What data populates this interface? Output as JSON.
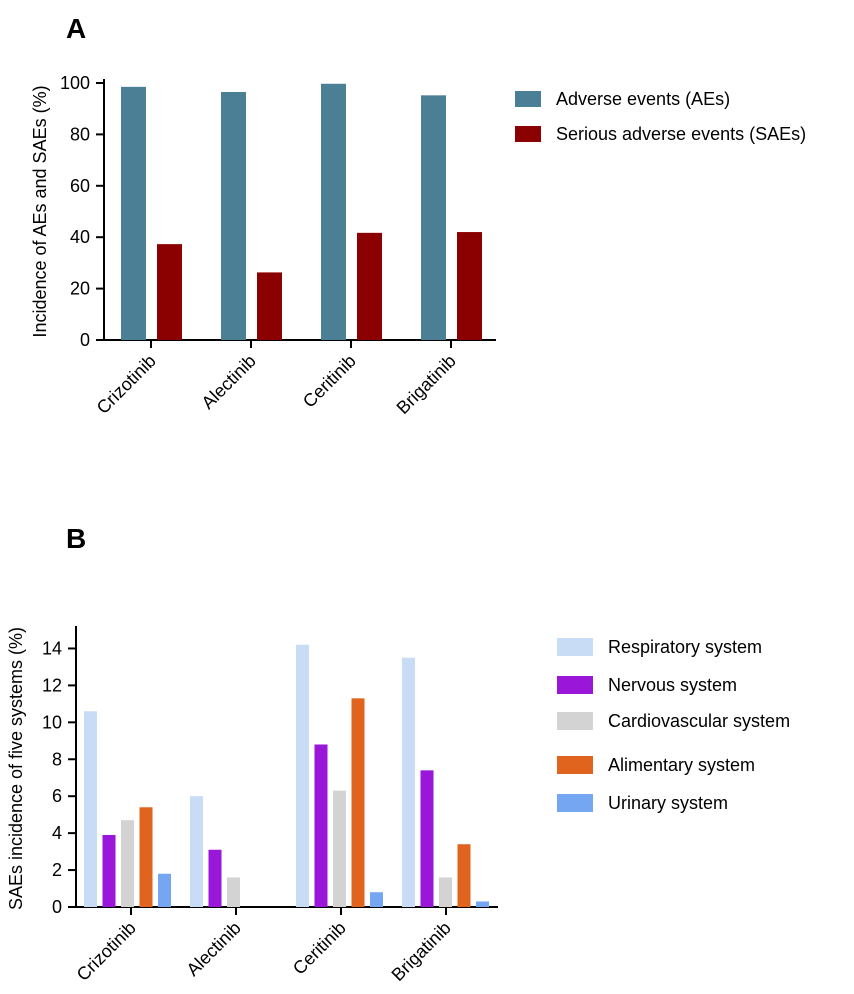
{
  "chart_data": [
    {
      "panel": "A",
      "type": "bar",
      "categories": [
        "Crizotinib",
        "Alectinib",
        "Ceritinib",
        "Brigatinib"
      ],
      "series": [
        {
          "name": "Adverse events (AEs)",
          "color": "#4a7f96",
          "values": [
            98.5,
            96.5,
            99.7,
            95.2
          ]
        },
        {
          "name": "Serious adverse events (SAEs)",
          "color": "#8b0000",
          "values": [
            37.3,
            26.3,
            41.7,
            42.0
          ]
        }
      ],
      "ylabel": "Incidence of AEs and SAEs (%)",
      "ylim": [
        0,
        100
      ],
      "yticks": [
        0,
        20,
        40,
        60,
        80,
        100
      ],
      "legend_position": "right"
    },
    {
      "panel": "B",
      "type": "bar",
      "categories": [
        "Crizotinib",
        "Alectinib",
        "Ceritinib",
        "Brigatinib"
      ],
      "series": [
        {
          "name": "Respiratory system",
          "color": "#c9dcf5",
          "values": [
            10.6,
            6.0,
            14.2,
            13.5
          ]
        },
        {
          "name": "Nervous system",
          "color": "#9a16d9",
          "values": [
            3.9,
            3.1,
            8.8,
            7.4
          ]
        },
        {
          "name": "Cardiovascular system",
          "color": "#d3d3d3",
          "values": [
            4.7,
            1.6,
            6.3,
            1.6
          ]
        },
        {
          "name": "Alimentary system",
          "color": "#e0641e",
          "values": [
            5.4,
            0,
            11.3,
            3.4
          ]
        },
        {
          "name": "Urinary system",
          "color": "#74a6f2",
          "values": [
            1.8,
            0,
            0.8,
            0.3
          ]
        }
      ],
      "ylabel": "SAEs incidence of five systems (%)",
      "ylim": [
        0,
        15
      ],
      "yticks": [
        0,
        2,
        4,
        6,
        8,
        10,
        12,
        14
      ],
      "legend_position": "right"
    }
  ]
}
